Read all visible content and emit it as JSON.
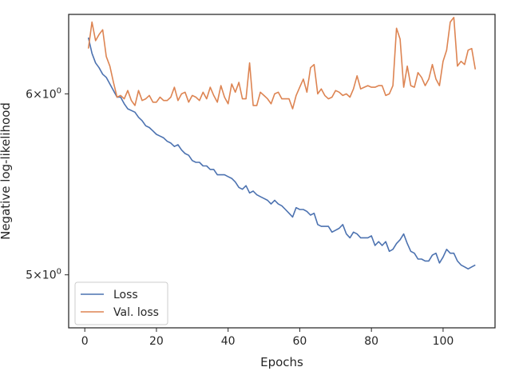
{
  "chart_data": {
    "type": "line",
    "title": "",
    "xlabel": "Epochs",
    "ylabel": "Negative log-likelihood",
    "yscale": "log",
    "xlim": [
      -4.5,
      114.5
    ],
    "ylim": [
      4.74,
      6.5
    ],
    "xticks": [
      0,
      20,
      40,
      60,
      80,
      100
    ],
    "xtick_labels": [
      "0",
      "20",
      "40",
      "60",
      "80",
      "100"
    ],
    "yticks": [
      5,
      6
    ],
    "ytick_labels": [
      {
        "base": "5×10",
        "exp": "0"
      },
      {
        "base": "6×10",
        "exp": "0"
      }
    ],
    "grid": false,
    "legend_position": "lower-left",
    "series": [
      {
        "name": "Loss",
        "color": "#4c72b0",
        "x": [
          1,
          2,
          3,
          4,
          5,
          6,
          7,
          8,
          9,
          10,
          11,
          12,
          13,
          14,
          15,
          16,
          17,
          18,
          19,
          20,
          21,
          22,
          23,
          24,
          25,
          26,
          27,
          28,
          29,
          30,
          31,
          32,
          33,
          34,
          35,
          36,
          37,
          38,
          39,
          40,
          41,
          42,
          43,
          44,
          45,
          46,
          47,
          48,
          49,
          50,
          51,
          52,
          53,
          54,
          55,
          56,
          57,
          58,
          59,
          60,
          61,
          62,
          63,
          64,
          65,
          66,
          67,
          68,
          69,
          70,
          71,
          72,
          73,
          74,
          75,
          76,
          77,
          78,
          79,
          80,
          81,
          82,
          83,
          84,
          85,
          86,
          87,
          88,
          89,
          90,
          91,
          92,
          93,
          94,
          95,
          96,
          97,
          98,
          99,
          100,
          101,
          102,
          103,
          104,
          105,
          106,
          107,
          108,
          109
        ],
        "values": [
          6.35,
          6.25,
          6.19,
          6.16,
          6.12,
          6.1,
          6.06,
          6.02,
          5.98,
          5.98,
          5.94,
          5.91,
          5.9,
          5.89,
          5.86,
          5.84,
          5.81,
          5.8,
          5.78,
          5.76,
          5.75,
          5.74,
          5.72,
          5.71,
          5.69,
          5.7,
          5.67,
          5.65,
          5.64,
          5.61,
          5.6,
          5.6,
          5.58,
          5.58,
          5.56,
          5.56,
          5.53,
          5.53,
          5.53,
          5.52,
          5.51,
          5.49,
          5.46,
          5.45,
          5.47,
          5.43,
          5.44,
          5.42,
          5.41,
          5.4,
          5.39,
          5.37,
          5.39,
          5.37,
          5.36,
          5.34,
          5.32,
          5.3,
          5.35,
          5.34,
          5.34,
          5.33,
          5.31,
          5.32,
          5.26,
          5.25,
          5.25,
          5.25,
          5.22,
          5.23,
          5.24,
          5.26,
          5.21,
          5.19,
          5.22,
          5.21,
          5.19,
          5.19,
          5.19,
          5.2,
          5.15,
          5.17,
          5.15,
          5.17,
          5.12,
          5.13,
          5.16,
          5.18,
          5.21,
          5.16,
          5.12,
          5.11,
          5.08,
          5.08,
          5.07,
          5.07,
          5.1,
          5.11,
          5.06,
          5.09,
          5.13,
          5.11,
          5.11,
          5.07,
          5.05,
          5.04,
          5.03,
          5.04,
          5.05
        ]
      },
      {
        "name": "Val. loss",
        "color": "#dd8452",
        "x": [
          1,
          2,
          3,
          4,
          5,
          6,
          7,
          8,
          9,
          10,
          11,
          12,
          13,
          14,
          15,
          16,
          17,
          18,
          19,
          20,
          21,
          22,
          23,
          24,
          25,
          26,
          27,
          28,
          29,
          30,
          31,
          32,
          33,
          34,
          35,
          36,
          37,
          38,
          39,
          40,
          41,
          42,
          43,
          44,
          45,
          46,
          47,
          48,
          49,
          50,
          51,
          52,
          53,
          54,
          55,
          56,
          57,
          58,
          59,
          60,
          61,
          62,
          63,
          64,
          65,
          66,
          67,
          68,
          69,
          70,
          71,
          72,
          73,
          74,
          75,
          76,
          77,
          78,
          79,
          80,
          81,
          82,
          83,
          84,
          85,
          86,
          87,
          88,
          89,
          90,
          91,
          92,
          93,
          94,
          95,
          96,
          97,
          98,
          99,
          100,
          101,
          102,
          103,
          104,
          105,
          106,
          107,
          108,
          109
        ],
        "values": [
          6.28,
          6.45,
          6.33,
          6.37,
          6.4,
          6.23,
          6.17,
          6.07,
          5.98,
          5.99,
          5.97,
          6.02,
          5.96,
          5.93,
          6.02,
          5.96,
          5.97,
          5.99,
          5.95,
          5.95,
          5.98,
          5.96,
          5.96,
          5.98,
          6.04,
          5.96,
          6.0,
          6.01,
          5.95,
          5.99,
          5.98,
          5.96,
          6.01,
          5.97,
          6.04,
          5.99,
          5.95,
          6.05,
          5.98,
          5.94,
          6.06,
          6.01,
          6.07,
          5.97,
          5.97,
          6.19,
          5.93,
          5.93,
          6.01,
          5.99,
          5.97,
          5.94,
          6.0,
          6.01,
          5.97,
          5.97,
          5.97,
          5.91,
          5.99,
          6.04,
          6.09,
          6.01,
          6.16,
          6.18,
          6.0,
          6.03,
          5.99,
          5.97,
          5.98,
          6.02,
          6.01,
          5.99,
          6.0,
          5.98,
          6.03,
          6.11,
          6.03,
          6.04,
          6.05,
          6.04,
          6.04,
          6.05,
          6.05,
          5.99,
          6.0,
          6.05,
          6.41,
          6.34,
          6.04,
          6.17,
          6.05,
          6.04,
          6.13,
          6.1,
          6.05,
          6.09,
          6.18,
          6.09,
          6.05,
          6.2,
          6.27,
          6.45,
          6.48,
          6.17,
          6.2,
          6.18,
          6.27,
          6.28,
          6.15
        ]
      }
    ]
  }
}
